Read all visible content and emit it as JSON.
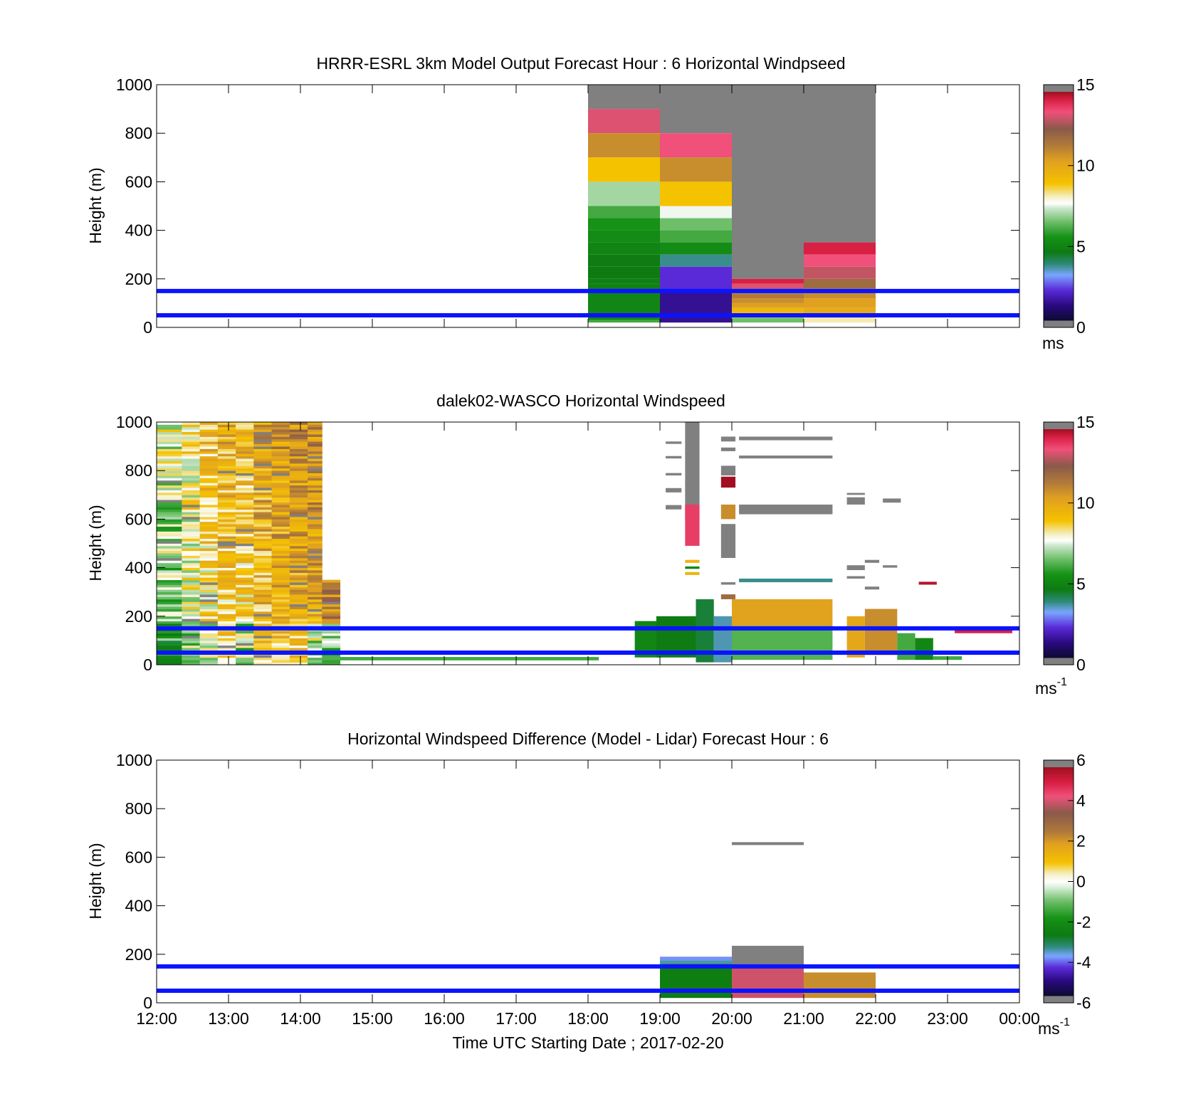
{
  "colors": {
    "background": "#ffffff",
    "axes": "#000000",
    "reference_lines": "#0a14ff"
  },
  "chart_data": [
    {
      "type": "heatmap",
      "title": "HRRR-ESRL 3km Model Output   Forecast Hour : 6 Horizontal Windpseed",
      "ylabel": "Height (m)",
      "xlabel": "",
      "ylim": [
        0,
        1000
      ],
      "xlim_hours": [
        12,
        24
      ],
      "yticks": [
        "0",
        "200",
        "400",
        "600",
        "800",
        "1000"
      ],
      "xtick_labels": [
        "12:00",
        "13:00",
        "14:00",
        "15:00",
        "16:00",
        "17:00",
        "18:00",
        "19:00",
        "20:00",
        "21:00",
        "22:00",
        "23:00",
        "00:00"
      ],
      "show_xtick_labels": false,
      "reference_lines_m": [
        150,
        50
      ],
      "colorbar": {
        "scale": "speed",
        "range": [
          0,
          15
        ],
        "ticks": [
          "0",
          "5",
          "10",
          "15"
        ],
        "unit": "ms",
        "unit_superscript": ""
      },
      "cells": [
        {
          "t0": 18,
          "t1": 19,
          "h0": 900,
          "h1": 1000,
          "v": 16
        },
        {
          "t0": 18,
          "t1": 19,
          "h0": 800,
          "h1": 900,
          "v": 13.5
        },
        {
          "t0": 18,
          "t1": 19,
          "h0": 700,
          "h1": 800,
          "v": 11
        },
        {
          "t0": 18,
          "t1": 19,
          "h0": 600,
          "h1": 700,
          "v": 9
        },
        {
          "t0": 18,
          "t1": 19,
          "h0": 500,
          "h1": 600,
          "v": 7
        },
        {
          "t0": 18,
          "t1": 19,
          "h0": 450,
          "h1": 500,
          "v": 6
        },
        {
          "t0": 18,
          "t1": 19,
          "h0": 400,
          "h1": 450,
          "v": 5.5
        },
        {
          "t0": 18,
          "t1": 19,
          "h0": 350,
          "h1": 400,
          "v": 5.2
        },
        {
          "t0": 18,
          "t1": 19,
          "h0": 300,
          "h1": 350,
          "v": 4.9
        },
        {
          "t0": 18,
          "t1": 19,
          "h0": 250,
          "h1": 300,
          "v": 4.6
        },
        {
          "t0": 18,
          "t1": 19,
          "h0": 200,
          "h1": 250,
          "v": 4.5
        },
        {
          "t0": 18,
          "t1": 19,
          "h0": 180,
          "h1": 200,
          "v": 4.7
        },
        {
          "t0": 18,
          "t1": 19,
          "h0": 150,
          "h1": 180,
          "v": 4.8
        },
        {
          "t0": 18,
          "t1": 19,
          "h0": 30,
          "h1": 150,
          "v": 5
        },
        {
          "t0": 18,
          "t1": 19,
          "h0": 20,
          "h1": 30,
          "v": 6
        },
        {
          "t0": 19,
          "t1": 20,
          "h0": 800,
          "h1": 1000,
          "v": 16
        },
        {
          "t0": 19,
          "t1": 20,
          "h0": 700,
          "h1": 800,
          "v": 13.7
        },
        {
          "t0": 19,
          "t1": 20,
          "h0": 600,
          "h1": 700,
          "v": 11
        },
        {
          "t0": 19,
          "t1": 20,
          "h0": 500,
          "h1": 600,
          "v": 9
        },
        {
          "t0": 19,
          "t1": 20,
          "h0": 450,
          "h1": 500,
          "v": 7.6
        },
        {
          "t0": 19,
          "t1": 20,
          "h0": 400,
          "h1": 450,
          "v": 6.5
        },
        {
          "t0": 19,
          "t1": 20,
          "h0": 350,
          "h1": 400,
          "v": 6
        },
        {
          "t0": 19,
          "t1": 20,
          "h0": 300,
          "h1": 350,
          "v": 5.2
        },
        {
          "t0": 19,
          "t1": 20,
          "h0": 250,
          "h1": 300,
          "v": 3.6
        },
        {
          "t0": 19,
          "t1": 20,
          "h0": 150,
          "h1": 250,
          "v": 2
        },
        {
          "t0": 19,
          "t1": 20,
          "h0": 20,
          "h1": 150,
          "v": 1.2
        },
        {
          "t0": 20,
          "t1": 21,
          "h0": 200,
          "h1": 1000,
          "v": 16
        },
        {
          "t0": 20,
          "t1": 21,
          "h0": 180,
          "h1": 200,
          "v": 14.5
        },
        {
          "t0": 20,
          "t1": 21,
          "h0": 160,
          "h1": 180,
          "v": 13.5
        },
        {
          "t0": 20,
          "t1": 21,
          "h0": 140,
          "h1": 160,
          "v": 12
        },
        {
          "t0": 20,
          "t1": 21,
          "h0": 120,
          "h1": 140,
          "v": 11.5
        },
        {
          "t0": 20,
          "t1": 21,
          "h0": 100,
          "h1": 120,
          "v": 11
        },
        {
          "t0": 20,
          "t1": 21,
          "h0": 80,
          "h1": 100,
          "v": 10.5
        },
        {
          "t0": 20,
          "t1": 21,
          "h0": 60,
          "h1": 80,
          "v": 9.5
        },
        {
          "t0": 20,
          "t1": 21,
          "h0": 40,
          "h1": 60,
          "v": 9
        },
        {
          "t0": 20,
          "t1": 21,
          "h0": 20,
          "h1": 40,
          "v": 6.5
        },
        {
          "t0": 21,
          "t1": 22,
          "h0": 350,
          "h1": 1000,
          "v": 16
        },
        {
          "t0": 21,
          "t1": 22,
          "h0": 300,
          "h1": 350,
          "v": 14.5
        },
        {
          "t0": 21,
          "t1": 22,
          "h0": 250,
          "h1": 300,
          "v": 13.7
        },
        {
          "t0": 21,
          "t1": 22,
          "h0": 200,
          "h1": 250,
          "v": 13.2
        },
        {
          "t0": 21,
          "t1": 22,
          "h0": 160,
          "h1": 200,
          "v": 12
        },
        {
          "t0": 21,
          "t1": 22,
          "h0": 120,
          "h1": 160,
          "v": 11
        },
        {
          "t0": 21,
          "t1": 22,
          "h0": 80,
          "h1": 120,
          "v": 10.5
        },
        {
          "t0": 21,
          "t1": 22,
          "h0": 40,
          "h1": 80,
          "v": 10
        },
        {
          "t0": 21,
          "t1": 22,
          "h0": 20,
          "h1": 40,
          "v": 8.2
        }
      ]
    },
    {
      "type": "heatmap",
      "title": "dalek02-WASCO  Horizontal Windspeed",
      "ylabel": "Height (m)",
      "xlabel": "",
      "ylim": [
        0,
        1000
      ],
      "xlim_hours": [
        12,
        24
      ],
      "yticks": [
        "0",
        "200",
        "400",
        "600",
        "800",
        "1000"
      ],
      "xtick_labels": [
        "12:00",
        "13:00",
        "14:00",
        "15:00",
        "16:00",
        "17:00",
        "18:00",
        "19:00",
        "20:00",
        "21:00",
        "22:00",
        "23:00",
        "00:00"
      ],
      "show_xtick_labels": false,
      "reference_lines_m": [
        150,
        50
      ],
      "colorbar": {
        "scale": "speed",
        "range": [
          0,
          15
        ],
        "ticks": [
          "0",
          "5",
          "10",
          "15"
        ],
        "unit": "ms",
        "unit_superscript": "-1"
      },
      "profile_columns": [
        {
          "t0": 12.0,
          "t1": 12.35,
          "top": 1000,
          "upper": 7.2,
          "lower": 5.5
        },
        {
          "t0": 12.35,
          "t1": 12.6,
          "top": 1000,
          "upper": 8.2,
          "lower": 7.0
        },
        {
          "t0": 12.6,
          "t1": 12.85,
          "top": 1000,
          "upper": 9.0,
          "lower": 7.5
        },
        {
          "t0": 12.85,
          "t1": 13.1,
          "top": 1000,
          "upper": 9.5,
          "lower": 8.5
        },
        {
          "t0": 13.1,
          "t1": 13.35,
          "top": 1000,
          "upper": 9.3,
          "lower": 7.0
        },
        {
          "t0": 13.35,
          "t1": 13.6,
          "top": 1000,
          "upper": 10.0,
          "lower": 8.8
        },
        {
          "t0": 13.6,
          "t1": 13.85,
          "top": 1000,
          "upper": 10.4,
          "lower": 9.0
        },
        {
          "t0": 13.85,
          "t1": 14.1,
          "top": 1000,
          "upper": 10.6,
          "lower": 9.2
        },
        {
          "t0": 14.1,
          "t1": 14.3,
          "top": 1000,
          "upper": 10.8,
          "lower": 7.2
        },
        {
          "t0": 14.3,
          "t1": 14.55,
          "top": 350,
          "upper": 11.2,
          "lower": 6.5
        }
      ],
      "cells": [
        {
          "t0": 14.55,
          "t1": 18.15,
          "h0": 18,
          "h1": 32,
          "v": 6.0
        },
        {
          "t0": 18.65,
          "t1": 19.0,
          "h0": 30,
          "h1": 180,
          "v": 5.0
        },
        {
          "t0": 18.95,
          "t1": 19.5,
          "h0": 30,
          "h1": 200,
          "v": 4.6
        },
        {
          "t0": 19.5,
          "t1": 19.75,
          "h0": 10,
          "h1": 270,
          "v": 4.2
        },
        {
          "t0": 19.75,
          "t1": 20.0,
          "h0": 10,
          "h1": 200,
          "v": 3.4
        },
        {
          "t0": 20.0,
          "t1": 21.4,
          "h0": 20,
          "h1": 160,
          "v": 6.2
        },
        {
          "t0": 20.0,
          "t1": 21.4,
          "h0": 160,
          "h1": 270,
          "v": 10.4
        },
        {
          "t0": 21.6,
          "t1": 21.85,
          "h0": 30,
          "h1": 200,
          "v": 10.2
        },
        {
          "t0": 21.85,
          "t1": 22.3,
          "h0": 40,
          "h1": 230,
          "v": 11.0
        },
        {
          "t0": 22.3,
          "t1": 22.55,
          "h0": 20,
          "h1": 130,
          "v": 6.0
        },
        {
          "t0": 22.55,
          "t1": 22.8,
          "h0": 20,
          "h1": 110,
          "v": 5.0
        },
        {
          "t0": 22.8,
          "t1": 23.2,
          "h0": 20,
          "h1": 35,
          "v": 6.0
        },
        {
          "t0": 23.1,
          "t1": 23.9,
          "h0": 130,
          "h1": 145,
          "v": 14.5
        },
        {
          "t0": 20.1,
          "t1": 21.4,
          "h0": 340,
          "h1": 355,
          "v": 3.6
        },
        {
          "t0": 20.1,
          "t1": 21.4,
          "h0": 620,
          "h1": 660,
          "v": 16
        },
        {
          "t0": 20.1,
          "t1": 21.4,
          "h0": 925,
          "h1": 940,
          "v": 16
        },
        {
          "t0": 20.1,
          "t1": 21.4,
          "h0": 850,
          "h1": 862,
          "v": 16
        },
        {
          "t0": 21.6,
          "t1": 21.85,
          "h0": 660,
          "h1": 690,
          "v": 16
        },
        {
          "t0": 21.6,
          "t1": 21.85,
          "h0": 700,
          "h1": 708,
          "v": 16
        },
        {
          "t0": 22.1,
          "t1": 22.35,
          "h0": 668,
          "h1": 685,
          "v": 16
        },
        {
          "t0": 21.6,
          "t1": 21.85,
          "h0": 390,
          "h1": 410,
          "v": 16
        },
        {
          "t0": 21.6,
          "t1": 21.85,
          "h0": 355,
          "h1": 365,
          "v": 16
        },
        {
          "t0": 21.85,
          "t1": 22.05,
          "h0": 420,
          "h1": 432,
          "v": 16
        },
        {
          "t0": 22.1,
          "t1": 22.3,
          "h0": 400,
          "h1": 410,
          "v": 16
        },
        {
          "t0": 21.85,
          "t1": 22.05,
          "h0": 310,
          "h1": 322,
          "v": 16
        },
        {
          "t0": 22.6,
          "t1": 22.85,
          "h0": 330,
          "h1": 342,
          "v": 14.8
        },
        {
          "t0": 19.35,
          "t1": 19.55,
          "h0": 600,
          "h1": 1000,
          "v": 16
        },
        {
          "t0": 19.35,
          "t1": 19.55,
          "h0": 490,
          "h1": 660,
          "v": 14.0
        },
        {
          "t0": 19.35,
          "t1": 19.55,
          "h0": 420,
          "h1": 432,
          "v": 9.6
        },
        {
          "t0": 19.35,
          "t1": 19.55,
          "h0": 395,
          "h1": 405,
          "v": 5.0
        },
        {
          "t0": 19.35,
          "t1": 19.55,
          "h0": 370,
          "h1": 382,
          "v": 9.6
        },
        {
          "t0": 19.08,
          "t1": 19.3,
          "h0": 640,
          "h1": 658,
          "v": 16
        },
        {
          "t0": 19.08,
          "t1": 19.3,
          "h0": 710,
          "h1": 728,
          "v": 16
        },
        {
          "t0": 19.08,
          "t1": 19.3,
          "h0": 780,
          "h1": 790,
          "v": 16
        },
        {
          "t0": 19.08,
          "t1": 19.3,
          "h0": 850,
          "h1": 860,
          "v": 16
        },
        {
          "t0": 19.08,
          "t1": 19.3,
          "h0": 910,
          "h1": 920,
          "v": 16
        },
        {
          "t0": 19.85,
          "t1": 20.05,
          "h0": 780,
          "h1": 820,
          "v": 16
        },
        {
          "t0": 19.85,
          "t1": 20.05,
          "h0": 730,
          "h1": 775,
          "v": 15.0
        },
        {
          "t0": 19.85,
          "t1": 20.05,
          "h0": 880,
          "h1": 895,
          "v": 16
        },
        {
          "t0": 19.85,
          "t1": 20.05,
          "h0": 920,
          "h1": 940,
          "v": 16
        },
        {
          "t0": 19.85,
          "t1": 20.05,
          "h0": 600,
          "h1": 660,
          "v": 11.0
        },
        {
          "t0": 19.85,
          "t1": 20.05,
          "h0": 440,
          "h1": 580,
          "v": 16
        },
        {
          "t0": 19.85,
          "t1": 20.05,
          "h0": 270,
          "h1": 290,
          "v": 12.0
        },
        {
          "t0": 19.85,
          "t1": 20.05,
          "h0": 330,
          "h1": 340,
          "v": 16
        }
      ]
    },
    {
      "type": "heatmap",
      "title": "Horizontal Windspeed Difference (Model - Lidar) Forecast Hour : 6",
      "ylabel": "Height (m)",
      "xlabel": "Time UTC  Starting Date ; 2017-02-20",
      "ylim": [
        0,
        1000
      ],
      "xlim_hours": [
        12,
        24
      ],
      "yticks": [
        "0",
        "200",
        "400",
        "600",
        "800",
        "1000"
      ],
      "xtick_labels": [
        "12:00",
        "13:00",
        "14:00",
        "15:00",
        "16:00",
        "17:00",
        "18:00",
        "19:00",
        "20:00",
        "21:00",
        "22:00",
        "23:00",
        "00:00"
      ],
      "show_xtick_labels": true,
      "reference_lines_m": [
        150,
        50
      ],
      "colorbar": {
        "scale": "diff",
        "range": [
          -6,
          6
        ],
        "ticks": [
          "-6",
          "-4",
          "-2",
          "0",
          "2",
          "4",
          "6"
        ],
        "unit": "ms",
        "unit_superscript": "-1"
      },
      "cells": [
        {
          "t0": 19,
          "t1": 20,
          "h0": 175,
          "h1": 190,
          "v": -4.0
        },
        {
          "t0": 19,
          "t1": 20,
          "h0": 160,
          "h1": 175,
          "v": -3.6
        },
        {
          "t0": 19,
          "t1": 20,
          "h0": 20,
          "h1": 160,
          "v": -2.7
        },
        {
          "t0": 20,
          "t1": 21,
          "h0": 650,
          "h1": 662,
          "v": 6.5
        },
        {
          "t0": 20,
          "t1": 21,
          "h0": 150,
          "h1": 235,
          "v": 6.5
        },
        {
          "t0": 20,
          "t1": 21,
          "h0": 20,
          "h1": 150,
          "v": 4.2
        },
        {
          "t0": 21,
          "t1": 22,
          "h0": 20,
          "h1": 125,
          "v": 2.3
        }
      ]
    }
  ]
}
